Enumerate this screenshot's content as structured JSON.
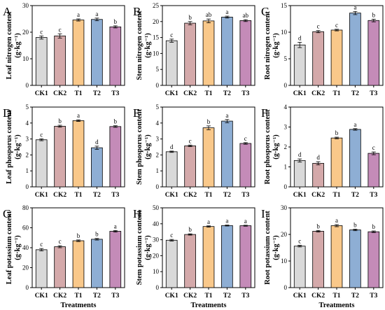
{
  "figure": {
    "xlabel": "Treatments",
    "categories": [
      "CK1",
      "CK2",
      "T1",
      "T2",
      "T3"
    ],
    "colors": [
      "#d9d9d9",
      "#d4a9aa",
      "#f9c88a",
      "#8eaed4",
      "#c48bb8"
    ]
  },
  "chart_data": [
    {
      "type": "bar",
      "panel": "A",
      "ylabel": "Leaf nitrogen content",
      "ylabel_unit": "(g·kg⁻¹)",
      "categories": [
        "CK1",
        "CK2",
        "T1",
        "T2",
        "T3"
      ],
      "values": [
        18,
        18.6,
        24.6,
        24.8,
        22
      ],
      "errors": [
        0.6,
        0.8,
        0.4,
        0.5,
        0.4
      ],
      "letters": [
        "c",
        "c",
        "a",
        "a",
        "b"
      ],
      "ylim": [
        0,
        30
      ],
      "yticks": [
        0,
        10,
        20,
        30
      ]
    },
    {
      "type": "bar",
      "panel": "B",
      "ylabel": "Stem nitrogen content",
      "ylabel_unit": "(g·kg⁻¹)",
      "categories": [
        "CK1",
        "CK2",
        "T1",
        "T2",
        "T3"
      ],
      "values": [
        14,
        19.5,
        20.2,
        21.4,
        20.3
      ],
      "errors": [
        0.5,
        0.5,
        0.6,
        0.3,
        0.3
      ],
      "letters": [
        "c",
        "b",
        "ab",
        "a",
        "ab"
      ],
      "ylim": [
        0,
        25
      ],
      "yticks": [
        0,
        5,
        10,
        15,
        20,
        25
      ]
    },
    {
      "type": "bar",
      "panel": "C",
      "ylabel": "Root nitrogen content",
      "ylabel_unit": "(g·kg⁻¹)",
      "categories": [
        "CK1",
        "CK2",
        "T1",
        "T2",
        "T3"
      ],
      "values": [
        7.6,
        10.1,
        10.4,
        13.6,
        12.2
      ],
      "errors": [
        0.5,
        0.2,
        0.15,
        0.3,
        0.25
      ],
      "letters": [
        "d",
        "c",
        "c",
        "a",
        "b"
      ],
      "ylim": [
        0,
        15
      ],
      "yticks": [
        0,
        5,
        10,
        15
      ]
    },
    {
      "type": "bar",
      "panel": "D",
      "ylabel": "Leaf phosporus content",
      "ylabel_unit": "(g·kg⁻¹)",
      "categories": [
        "CK1",
        "CK2",
        "T1",
        "T2",
        "T3"
      ],
      "values": [
        2.95,
        3.8,
        4.15,
        2.45,
        3.78
      ],
      "errors": [
        0.06,
        0.06,
        0.05,
        0.1,
        0.05
      ],
      "letters": [
        "c",
        "b",
        "a",
        "d",
        "b"
      ],
      "ylim": [
        0,
        5
      ],
      "yticks": [
        0,
        1,
        2,
        3,
        4,
        5
      ]
    },
    {
      "type": "bar",
      "panel": "E",
      "ylabel": "Stem phosporus content",
      "ylabel_unit": "(g·kg⁻¹)",
      "categories": [
        "CK1",
        "CK2",
        "T1",
        "T2",
        "T3"
      ],
      "values": [
        2.2,
        2.57,
        3.7,
        4.12,
        2.72
      ],
      "errors": [
        0.04,
        0.05,
        0.12,
        0.1,
        0.05
      ],
      "letters": [
        "d",
        "c",
        "b",
        "a",
        "c"
      ],
      "ylim": [
        0,
        5
      ],
      "yticks": [
        0,
        1,
        2,
        3,
        4,
        5
      ]
    },
    {
      "type": "bar",
      "panel": "F",
      "ylabel": "Root phosporus content",
      "ylabel_unit": "(g·kg⁻¹)",
      "categories": [
        "CK1",
        "CK2",
        "T1",
        "T2",
        "T3"
      ],
      "values": [
        1.32,
        1.18,
        2.45,
        2.88,
        1.68
      ],
      "errors": [
        0.08,
        0.08,
        0.04,
        0.04,
        0.07
      ],
      "letters": [
        "d",
        "d",
        "b",
        "a",
        "c"
      ],
      "ylim": [
        0,
        4
      ],
      "yticks": [
        0,
        1,
        2,
        3,
        4
      ]
    },
    {
      "type": "bar",
      "panel": "G",
      "ylabel": "Leaf  potassium content",
      "ylabel_unit": "(g·kg⁻¹)",
      "categories": [
        "CK1",
        "CK2",
        "T1",
        "T2",
        "T3"
      ],
      "values": [
        38,
        41,
        47,
        48.5,
        56.5
      ],
      "errors": [
        1.2,
        1.0,
        0.8,
        0.8,
        0.8
      ],
      "letters": [
        "c",
        "c",
        "b",
        "b",
        "a"
      ],
      "ylim": [
        0,
        80
      ],
      "yticks": [
        0,
        20,
        40,
        60,
        80
      ]
    },
    {
      "type": "bar",
      "panel": "H",
      "ylabel": "Stem potassium  content",
      "ylabel_unit": "(g·kg⁻¹)",
      "categories": [
        "CK1",
        "CK2",
        "T1",
        "T2",
        "T3"
      ],
      "values": [
        29.7,
        33.3,
        38.3,
        38.9,
        38.8
      ],
      "errors": [
        0.5,
        0.4,
        0.4,
        0.3,
        0.3
      ],
      "letters": [
        "c",
        "b",
        "a",
        "a",
        "a"
      ],
      "ylim": [
        0,
        50
      ],
      "yticks": [
        0,
        10,
        20,
        30,
        40,
        50
      ]
    },
    {
      "type": "bar",
      "panel": "I",
      "ylabel": "Root potassium content",
      "ylabel_unit": "(g·kg⁻¹)",
      "categories": [
        "CK1",
        "CK2",
        "T1",
        "T2",
        "T3"
      ],
      "values": [
        15.6,
        21.2,
        23.3,
        21.7,
        21
      ],
      "errors": [
        0.3,
        0.3,
        0.4,
        0.3,
        0.3
      ],
      "letters": [
        "c",
        "b",
        "a",
        "b",
        "b"
      ],
      "ylim": [
        0,
        30
      ],
      "yticks": [
        0,
        10,
        20,
        30
      ]
    }
  ]
}
